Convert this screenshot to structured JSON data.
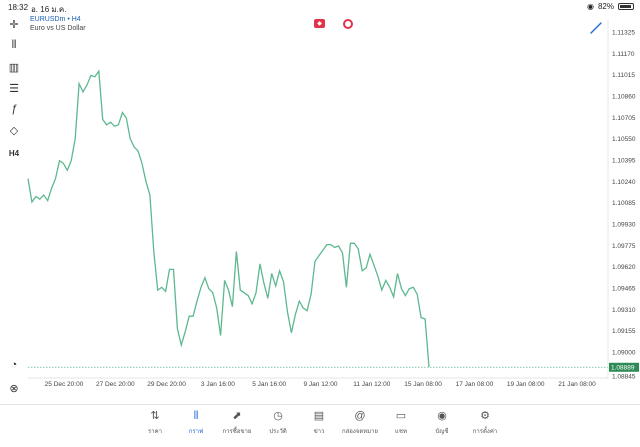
{
  "status_bar": {
    "time": "18:32",
    "date": "อ. 16 ม.ค.",
    "battery": "82%"
  },
  "symbol": {
    "name": "EURUSDm • H4",
    "description": "Euro vs US Dollar"
  },
  "toolbar": {
    "items": [
      {
        "icon": "crosshair-icon",
        "glyph": "✛"
      },
      {
        "icon": "candlestick-icon",
        "glyph": "⫴"
      },
      {
        "icon": "indicators-icon",
        "glyph": "▥"
      },
      {
        "icon": "settings-sliders-icon",
        "glyph": "☰"
      },
      {
        "icon": "function-icon",
        "glyph": "ƒ"
      },
      {
        "icon": "shapes-icon",
        "glyph": "◇"
      },
      {
        "icon": "timeframe-label",
        "glyph": "H4"
      }
    ]
  },
  "colors": {
    "line": "#5cb88f",
    "accent": "#2a6fd6",
    "price_tag": "#2e8b57"
  },
  "chart_data": {
    "type": "line",
    "current_price": "1.08889",
    "ylim": [
      1.08845,
      1.11325
    ],
    "y_ticks": [
      "1.11325",
      "1.11170",
      "1.11015",
      "1.10860",
      "1.10705",
      "1.10550",
      "1.10395",
      "1.10240",
      "1.10085",
      "1.09930",
      "1.09775",
      "1.09620",
      "1.09465",
      "1.09310",
      "1.09155",
      "1.09000"
    ],
    "x_ticks": [
      "25 Dec 20:00",
      "27 Dec 20:00",
      "29 Dec 20:00",
      "3 Jan 16:00",
      "5 Jan 16:00",
      "9 Jan 12:00",
      "11 Jan 12:00",
      "15 Jan 08:00",
      "17 Jan 08:00",
      "19 Jan 08:00",
      "21 Jan 08:00"
    ],
    "values": [
      1.1026,
      1.1009,
      1.1013,
      1.1011,
      1.1014,
      1.101,
      1.1019,
      1.1026,
      1.1039,
      1.1037,
      1.1032,
      1.1039,
      1.1055,
      1.1095,
      1.1089,
      1.1094,
      1.1101,
      1.11,
      1.1104,
      1.1069,
      1.1065,
      1.1067,
      1.1064,
      1.1065,
      1.1074,
      1.107,
      1.1055,
      1.1049,
      1.1046,
      1.1037,
      1.1024,
      1.1014,
      1.0973,
      1.0945,
      1.0947,
      1.0944,
      1.096,
      1.096,
      1.0917,
      1.0905,
      1.0915,
      1.0926,
      1.0926,
      1.0937,
      1.0947,
      1.0954,
      1.0946,
      1.0943,
      1.0932,
      1.0912,
      1.0952,
      1.0945,
      1.0933,
      1.0973,
      1.0945,
      1.0943,
      1.0941,
      1.0935,
      1.0943,
      1.0964,
      1.095,
      1.0939,
      1.0957,
      1.0948,
      1.0959,
      1.0951,
      1.0929,
      1.0914,
      1.0927,
      1.0937,
      1.0932,
      1.093,
      1.0942,
      1.0966,
      1.097,
      1.0974,
      1.0978,
      1.0978,
      1.0976,
      1.0977,
      1.0972,
      1.0947,
      1.0979,
      1.0979,
      1.0975,
      1.0959,
      1.0961,
      1.0971,
      1.0963,
      1.0955,
      1.0945,
      1.0952,
      1.0947,
      1.094,
      1.0957,
      1.0946,
      1.0941,
      1.0946,
      1.0947,
      1.0942,
      1.0925,
      1.0924,
      1.0889
    ]
  },
  "tabs": [
    {
      "icon": "quotes-icon",
      "glyph": "⇅",
      "label": "ราคา"
    },
    {
      "icon": "chart-icon",
      "glyph": "⫴",
      "label": "กราฟ"
    },
    {
      "icon": "trade-icon",
      "glyph": "⬈",
      "label": "การซื้อขาย"
    },
    {
      "icon": "history-icon",
      "glyph": "◷",
      "label": "ประวัติ"
    },
    {
      "icon": "news-icon",
      "glyph": "▤",
      "label": "ข่าว"
    },
    {
      "icon": "mailbox-icon",
      "glyph": "@",
      "label": "กล่องจดหมาย"
    },
    {
      "icon": "chat-icon",
      "glyph": "▭",
      "label": "แชท"
    },
    {
      "icon": "account-icon",
      "glyph": "◉",
      "label": "บัญชี"
    },
    {
      "icon": "settings-icon",
      "glyph": "⚙",
      "label": "การตั้งค่า"
    }
  ]
}
